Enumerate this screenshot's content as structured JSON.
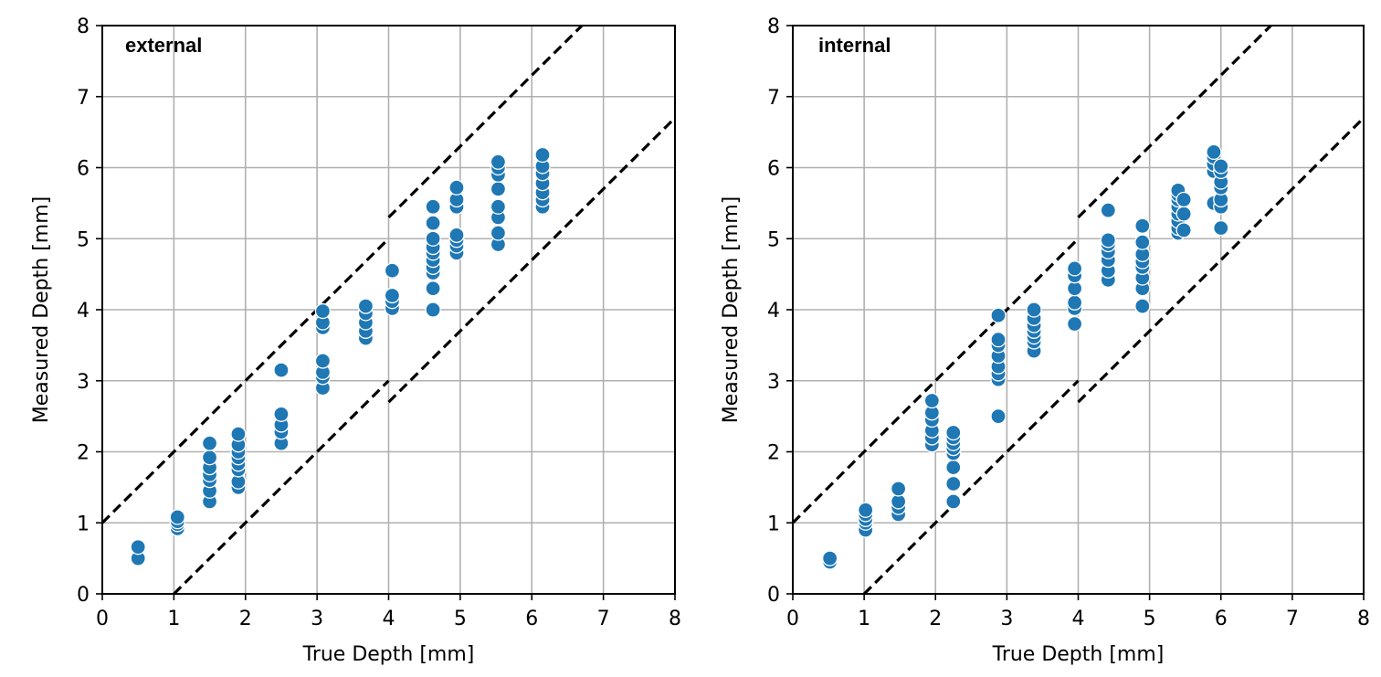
{
  "chart_data": [
    {
      "type": "scatter",
      "title": "external",
      "xlabel": "True Depth [mm]",
      "ylabel": "Measured Depth [mm]",
      "xlim": [
        0,
        8
      ],
      "ylim": [
        0,
        8
      ],
      "xticks": [
        "0",
        "1",
        "2",
        "3",
        "4",
        "5",
        "6",
        "7",
        "8"
      ],
      "yticks": [
        "0",
        "1",
        "2",
        "3",
        "4",
        "5",
        "6",
        "7",
        "8"
      ],
      "grid": true,
      "marker_color": "#1f77b4",
      "guide_lines": [
        {
          "name": "upper-bound",
          "style": "dashed",
          "segments": [
            [
              [
                0,
                1
              ],
              [
                4,
                5
              ]
            ],
            [
              [
                4,
                5.3
              ],
              [
                6.7,
                8
              ]
            ]
          ]
        },
        {
          "name": "lower-bound",
          "style": "dashed",
          "segments": [
            [
              [
                1,
                0
              ],
              [
                4,
                3
              ]
            ],
            [
              [
                4,
                2.7
              ],
              [
                8,
                6.7
              ]
            ]
          ]
        }
      ],
      "points": [
        [
          0.5,
          0.5
        ],
        [
          0.5,
          0.66
        ],
        [
          1.05,
          0.92
        ],
        [
          1.05,
          0.98
        ],
        [
          1.05,
          1.02
        ],
        [
          1.05,
          1.08
        ],
        [
          1.5,
          1.3
        ],
        [
          1.5,
          1.45
        ],
        [
          1.5,
          1.6
        ],
        [
          1.5,
          1.68
        ],
        [
          1.5,
          1.78
        ],
        [
          1.5,
          1.92
        ],
        [
          1.5,
          2.12
        ],
        [
          1.9,
          1.5
        ],
        [
          1.9,
          1.58
        ],
        [
          1.9,
          1.75
        ],
        [
          1.9,
          1.83
        ],
        [
          1.9,
          1.92
        ],
        [
          1.9,
          2.0
        ],
        [
          1.9,
          2.1
        ],
        [
          1.9,
          2.25
        ],
        [
          2.5,
          2.12
        ],
        [
          2.5,
          2.28
        ],
        [
          2.5,
          2.38
        ],
        [
          2.5,
          2.53
        ],
        [
          2.5,
          3.15
        ],
        [
          3.08,
          2.9
        ],
        [
          3.08,
          3.05
        ],
        [
          3.08,
          3.12
        ],
        [
          3.08,
          3.28
        ],
        [
          3.08,
          3.75
        ],
        [
          3.08,
          3.82
        ],
        [
          3.08,
          3.98
        ],
        [
          3.68,
          3.6
        ],
        [
          3.68,
          3.7
        ],
        [
          3.68,
          3.82
        ],
        [
          3.68,
          3.95
        ],
        [
          3.68,
          4.05
        ],
        [
          4.05,
          4.02
        ],
        [
          4.05,
          4.12
        ],
        [
          4.05,
          4.2
        ],
        [
          4.05,
          4.55
        ],
        [
          4.62,
          4.0
        ],
        [
          4.62,
          4.3
        ],
        [
          4.62,
          4.52
        ],
        [
          4.62,
          4.6
        ],
        [
          4.62,
          4.7
        ],
        [
          4.62,
          4.8
        ],
        [
          4.62,
          4.88
        ],
        [
          4.62,
          5.0
        ],
        [
          4.62,
          5.22
        ],
        [
          4.62,
          5.45
        ],
        [
          4.95,
          4.8
        ],
        [
          4.95,
          4.9
        ],
        [
          4.95,
          4.98
        ],
        [
          4.95,
          5.05
        ],
        [
          4.95,
          5.45
        ],
        [
          4.95,
          5.55
        ],
        [
          4.95,
          5.72
        ],
        [
          5.53,
          4.92
        ],
        [
          5.53,
          5.08
        ],
        [
          5.53,
          5.3
        ],
        [
          5.53,
          5.45
        ],
        [
          5.53,
          5.7
        ],
        [
          5.53,
          5.9
        ],
        [
          5.53,
          6.0
        ],
        [
          5.53,
          6.08
        ],
        [
          6.15,
          5.45
        ],
        [
          6.15,
          5.55
        ],
        [
          6.15,
          5.65
        ],
        [
          6.15,
          5.78
        ],
        [
          6.15,
          5.92
        ],
        [
          6.15,
          6.02
        ],
        [
          6.15,
          6.18
        ]
      ]
    },
    {
      "type": "scatter",
      "title": "internal",
      "xlabel": "True Depth [mm]",
      "ylabel": "Measured Depth [mm]",
      "xlim": [
        0,
        8
      ],
      "ylim": [
        0,
        8
      ],
      "xticks": [
        "0",
        "1",
        "2",
        "3",
        "4",
        "5",
        "6",
        "7",
        "8"
      ],
      "yticks": [
        "0",
        "1",
        "2",
        "3",
        "4",
        "5",
        "6",
        "7",
        "8"
      ],
      "grid": true,
      "marker_color": "#1f77b4",
      "guide_lines": [
        {
          "name": "upper-bound",
          "style": "dashed",
          "segments": [
            [
              [
                0,
                1
              ],
              [
                4,
                5
              ]
            ],
            [
              [
                4,
                5.3
              ],
              [
                6.7,
                8
              ]
            ]
          ]
        },
        {
          "name": "lower-bound",
          "style": "dashed",
          "segments": [
            [
              [
                1,
                0
              ],
              [
                4,
                3
              ]
            ],
            [
              [
                4,
                2.7
              ],
              [
                8,
                6.7
              ]
            ]
          ]
        }
      ],
      "points": [
        [
          0.52,
          0.45
        ],
        [
          0.52,
          0.5
        ],
        [
          1.02,
          0.9
        ],
        [
          1.02,
          1.0
        ],
        [
          1.02,
          1.05
        ],
        [
          1.02,
          1.12
        ],
        [
          1.02,
          1.18
        ],
        [
          1.48,
          1.12
        ],
        [
          1.48,
          1.22
        ],
        [
          1.48,
          1.3
        ],
        [
          1.48,
          1.48
        ],
        [
          1.95,
          2.1
        ],
        [
          1.95,
          2.2
        ],
        [
          1.95,
          2.3
        ],
        [
          1.95,
          2.45
        ],
        [
          1.95,
          2.55
        ],
        [
          1.95,
          2.72
        ],
        [
          2.25,
          1.3
        ],
        [
          2.25,
          1.55
        ],
        [
          2.25,
          1.78
        ],
        [
          2.25,
          1.98
        ],
        [
          2.25,
          2.05
        ],
        [
          2.25,
          2.12
        ],
        [
          2.25,
          2.2
        ],
        [
          2.25,
          2.27
        ],
        [
          2.88,
          2.5
        ],
        [
          2.88,
          3.02
        ],
        [
          2.88,
          3.1
        ],
        [
          2.88,
          3.2
        ],
        [
          2.88,
          3.35
        ],
        [
          2.88,
          3.5
        ],
        [
          2.88,
          3.58
        ],
        [
          2.88,
          3.92
        ],
        [
          3.38,
          3.42
        ],
        [
          3.38,
          3.55
        ],
        [
          3.38,
          3.62
        ],
        [
          3.38,
          3.7
        ],
        [
          3.38,
          3.78
        ],
        [
          3.38,
          3.88
        ],
        [
          3.38,
          4.0
        ],
        [
          3.95,
          3.8
        ],
        [
          3.95,
          4.02
        ],
        [
          3.95,
          4.1
        ],
        [
          3.95,
          4.3
        ],
        [
          3.95,
          4.48
        ],
        [
          3.95,
          4.58
        ],
        [
          4.42,
          4.42
        ],
        [
          4.42,
          4.55
        ],
        [
          4.42,
          4.7
        ],
        [
          4.42,
          4.82
        ],
        [
          4.42,
          4.92
        ],
        [
          4.42,
          4.98
        ],
        [
          4.42,
          5.4
        ],
        [
          4.9,
          4.05
        ],
        [
          4.9,
          4.3
        ],
        [
          4.9,
          4.45
        ],
        [
          4.9,
          4.6
        ],
        [
          4.9,
          4.68
        ],
        [
          4.9,
          4.78
        ],
        [
          4.9,
          4.95
        ],
        [
          4.9,
          5.18
        ],
        [
          5.4,
          5.08
        ],
        [
          5.4,
          5.15
        ],
        [
          5.4,
          5.25
        ],
        [
          5.4,
          5.35
        ],
        [
          5.4,
          5.45
        ],
        [
          5.4,
          5.55
        ],
        [
          5.4,
          5.62
        ],
        [
          5.4,
          5.68
        ],
        [
          5.48,
          5.12
        ],
        [
          5.48,
          5.35
        ],
        [
          5.48,
          5.55
        ],
        [
          5.9,
          5.5
        ],
        [
          5.9,
          5.95
        ],
        [
          5.9,
          6.05
        ],
        [
          5.9,
          6.15
        ],
        [
          5.9,
          6.22
        ],
        [
          6.0,
          5.15
        ],
        [
          6.0,
          5.45
        ],
        [
          6.0,
          5.55
        ],
        [
          6.0,
          5.72
        ],
        [
          6.0,
          5.8
        ],
        [
          6.0,
          5.95
        ],
        [
          6.0,
          6.02
        ]
      ]
    }
  ]
}
